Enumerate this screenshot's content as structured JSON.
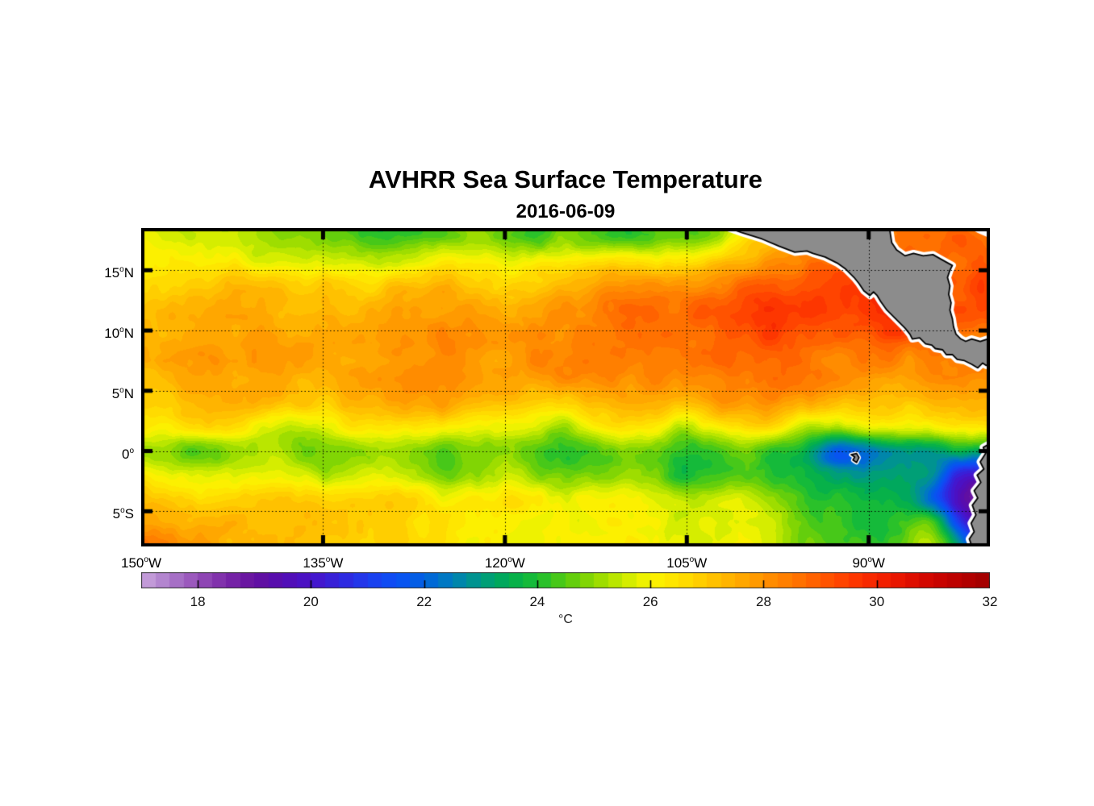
{
  "figure": {
    "title": "AVHRR Sea Surface Temperature",
    "subtitle": "2016-06-09"
  },
  "chart_data": {
    "type": "heatmap",
    "title": "AVHRR Sea Surface Temperature",
    "subtitle": "2016-06-09",
    "units_label": "°C",
    "lon_range": [
      -150,
      -80
    ],
    "lat_range": [
      -7.92,
      18.5
    ],
    "grid_on": true,
    "xticks": [
      {
        "lon": -150,
        "num": "150",
        "sup": "o",
        "dir": "W"
      },
      {
        "lon": -135,
        "num": "135",
        "sup": "o",
        "dir": "W"
      },
      {
        "lon": -120,
        "num": "120",
        "sup": "o",
        "dir": "W"
      },
      {
        "lon": -105,
        "num": "105",
        "sup": "o",
        "dir": "W"
      },
      {
        "lon": -90,
        "num": "90",
        "sup": "o",
        "dir": "W"
      }
    ],
    "yticks": [
      {
        "lat": 15,
        "num": "15",
        "sup": "o",
        "dir": "N"
      },
      {
        "lat": 10,
        "num": "10",
        "sup": "o",
        "dir": "N"
      },
      {
        "lat": 5,
        "num": "5",
        "sup": "o",
        "dir": "N"
      },
      {
        "lat": 0,
        "num": "0",
        "sup": "o",
        "dir": ""
      },
      {
        "lat": -5,
        "num": "5",
        "sup": "o",
        "dir": "S"
      }
    ],
    "colorbar": {
      "min": 17,
      "max": 32,
      "step": 0.25,
      "ticks": [
        18,
        20,
        22,
        24,
        26,
        28,
        30,
        32
      ],
      "tick_labels": [
        "18",
        "20",
        "22",
        "24",
        "26",
        "28",
        "30",
        "32"
      ],
      "unit": "°C",
      "stops": [
        [
          17.0,
          "#c9a4dc"
        ],
        [
          17.5,
          "#ab7aca"
        ],
        [
          18.0,
          "#954eb8"
        ],
        [
          18.5,
          "#7a28a8"
        ],
        [
          19.0,
          "#64109e"
        ],
        [
          19.5,
          "#540cb2"
        ],
        [
          20.0,
          "#4813c9"
        ],
        [
          20.5,
          "#3224dc"
        ],
        [
          21.0,
          "#1e3cee"
        ],
        [
          21.5,
          "#0a50f5"
        ],
        [
          22.0,
          "#0061e0"
        ],
        [
          22.5,
          "#007fb9"
        ],
        [
          23.0,
          "#009a82"
        ],
        [
          23.5,
          "#00ad50"
        ],
        [
          24.0,
          "#1cbe32"
        ],
        [
          24.5,
          "#55cb10"
        ],
        [
          25.0,
          "#90d800"
        ],
        [
          25.5,
          "#c8ea00"
        ],
        [
          26.0,
          "#fbf500"
        ],
        [
          26.5,
          "#ffe100"
        ],
        [
          27.0,
          "#ffc700"
        ],
        [
          27.5,
          "#ffad00"
        ],
        [
          28.0,
          "#ff9300"
        ],
        [
          28.5,
          "#ff7800"
        ],
        [
          29.0,
          "#ff5a00"
        ],
        [
          29.5,
          "#ff3c00"
        ],
        [
          30.0,
          "#f62300"
        ],
        [
          30.5,
          "#e41100"
        ],
        [
          31.0,
          "#cd0400"
        ],
        [
          31.5,
          "#b70000"
        ],
        [
          32.0,
          "#9f0000"
        ]
      ]
    },
    "sst_grid": {
      "lons": [
        -150,
        -147.5,
        -145,
        -142.5,
        -140,
        -137.5,
        -135,
        -132.5,
        -130,
        -127.5,
        -125,
        -122.5,
        -120,
        -117.5,
        -115,
        -112.5,
        -110,
        -107.5,
        -105,
        -102.5,
        -100,
        -97.5,
        -95,
        -92.5,
        -90,
        -87.5,
        -85,
        -82.5,
        -80
      ],
      "lats": [
        18,
        16,
        14,
        12,
        10,
        8,
        6,
        4,
        2,
        0,
        -2,
        -4,
        -6,
        -8
      ],
      "values": [
        [
          25.9,
          25.7,
          25.6,
          25.4,
          25.1,
          24.6,
          24.9,
          24.3,
          23.9,
          24.1,
          24.4,
          25.2,
          24.6,
          24.3,
          24.8,
          24.5,
          24.2,
          24.6,
          24.4,
          24.8,
          26.5,
          27.5,
          28.0,
          28.2,
          28.5,
          28.7,
          28.8,
          28.8,
          28.5
        ],
        [
          26.2,
          26.3,
          26.2,
          26.0,
          25.6,
          25.5,
          25.5,
          25.4,
          25.3,
          25.5,
          26.0,
          26.0,
          25.6,
          25.8,
          25.9,
          26.1,
          26.3,
          26.1,
          26.0,
          26.6,
          27.3,
          28.0,
          28.3,
          28.6,
          29.0,
          29.0,
          28.9,
          28.8,
          28.8
        ],
        [
          26.6,
          26.8,
          27.0,
          27.2,
          27.0,
          26.8,
          26.7,
          26.6,
          26.8,
          27.0,
          27.2,
          27.0,
          26.8,
          27.0,
          27.2,
          27.5,
          27.8,
          27.7,
          27.8,
          28.2,
          28.6,
          28.8,
          29.2,
          29.3,
          29.5,
          29.8,
          29.6,
          29.2,
          29.3
        ],
        [
          27.0,
          27.2,
          27.4,
          27.5,
          27.4,
          27.3,
          27.2,
          27.2,
          27.4,
          27.6,
          27.8,
          27.7,
          27.5,
          27.7,
          28.0,
          28.3,
          28.6,
          28.5,
          28.7,
          29.0,
          29.3,
          29.5,
          29.6,
          29.4,
          29.8,
          29.9,
          29.5,
          29.0,
          29.0
        ],
        [
          27.2,
          27.4,
          27.6,
          27.7,
          27.6,
          27.5,
          27.4,
          27.5,
          27.7,
          27.9,
          28.0,
          27.9,
          27.8,
          28.0,
          28.2,
          28.4,
          28.6,
          28.5,
          28.6,
          28.8,
          29.2,
          29.4,
          29.3,
          29.0,
          29.2,
          29.4,
          29.0,
          28.8,
          28.6
        ],
        [
          27.4,
          27.6,
          27.8,
          27.9,
          27.8,
          27.7,
          27.6,
          27.7,
          27.9,
          28.0,
          28.1,
          28.0,
          27.9,
          28.1,
          28.2,
          28.3,
          28.4,
          28.3,
          28.4,
          28.6,
          28.8,
          28.9,
          28.7,
          28.5,
          28.4,
          28.3,
          28.4,
          28.2,
          28.0
        ],
        [
          27.2,
          27.4,
          27.6,
          27.7,
          27.7,
          27.5,
          27.4,
          27.6,
          27.8,
          27.9,
          28.0,
          27.8,
          27.7,
          27.9,
          28.1,
          28.2,
          28.2,
          28.1,
          28.2,
          28.4,
          28.5,
          28.5,
          28.3,
          28.1,
          28.0,
          27.9,
          28.0,
          28.1,
          28.2
        ],
        [
          26.8,
          27.0,
          27.3,
          27.5,
          27.4,
          27.2,
          27.0,
          27.2,
          27.5,
          27.7,
          27.6,
          27.3,
          27.1,
          26.8,
          26.5,
          27.2,
          27.7,
          27.5,
          27.3,
          27.8,
          28.0,
          27.9,
          27.4,
          27.3,
          27.1,
          27.0,
          27.2,
          27.4,
          27.3
        ],
        [
          26.2,
          26.4,
          26.6,
          26.5,
          25.8,
          25.4,
          25.8,
          26.2,
          26.5,
          26.5,
          26.3,
          26.0,
          25.8,
          25.6,
          25.2,
          26.0,
          26.6,
          26.3,
          25.3,
          26.2,
          26.7,
          26.3,
          25.3,
          25.5,
          25.9,
          25.8,
          26.0,
          26.3,
          26.4
        ],
        [
          25.2,
          24.9,
          24.6,
          25.0,
          25.3,
          25.0,
          24.7,
          24.9,
          25.2,
          24.8,
          24.4,
          24.8,
          25.2,
          24.6,
          23.9,
          24.3,
          24.8,
          24.4,
          23.9,
          24.3,
          24.6,
          24.2,
          23.6,
          21.8,
          22.5,
          23.0,
          23.2,
          23.6,
          23.5
        ],
        [
          26.1,
          25.8,
          25.6,
          25.8,
          26.0,
          25.7,
          25.4,
          25.6,
          25.8,
          25.3,
          24.9,
          25.2,
          25.5,
          25.0,
          24.5,
          24.8,
          25.1,
          24.6,
          24.1,
          24.3,
          24.6,
          24.0,
          23.4,
          22.9,
          22.8,
          23.0,
          22.7,
          20.5,
          19.8
        ],
        [
          27.2,
          27.0,
          26.8,
          26.9,
          27.0,
          26.8,
          26.6,
          26.7,
          26.8,
          26.5,
          26.2,
          26.4,
          26.5,
          26.1,
          25.8,
          26.0,
          26.1,
          25.7,
          25.4,
          25.6,
          25.7,
          25.0,
          24.3,
          24.0,
          23.8,
          23.5,
          22.2,
          19.8,
          18.4
        ],
        [
          27.9,
          27.7,
          27.5,
          27.3,
          27.2,
          27.1,
          27.0,
          26.9,
          26.8,
          26.6,
          26.4,
          26.3,
          26.2,
          26.0,
          25.9,
          26.0,
          26.1,
          25.8,
          25.6,
          25.8,
          25.9,
          25.2,
          24.5,
          24.2,
          23.8,
          24.0,
          24.4,
          21.2,
          18.4
        ],
        [
          28.4,
          28.1,
          27.8,
          27.5,
          27.3,
          27.2,
          27.1,
          26.9,
          26.7,
          26.5,
          26.4,
          26.2,
          26.1,
          26.0,
          26.1,
          26.2,
          26.2,
          25.9,
          25.7,
          25.9,
          26.0,
          25.4,
          24.9,
          24.5,
          24.1,
          24.7,
          25.4,
          22.9,
          19.5
        ]
      ]
    },
    "land": {
      "fill": "#8c8c8c",
      "coast": "#000000",
      "fringe": "#ffffff",
      "central_america": [
        [
          -101.8,
          18.6
        ],
        [
          -100.4,
          18.1
        ],
        [
          -98.8,
          17.6
        ],
        [
          -97.4,
          17.0
        ],
        [
          -96.1,
          16.5
        ],
        [
          -95.1,
          16.6
        ],
        [
          -94.6,
          16.4
        ],
        [
          -93.6,
          16.1
        ],
        [
          -92.6,
          15.6
        ],
        [
          -91.9,
          15.1
        ],
        [
          -91.2,
          14.4
        ],
        [
          -90.8,
          13.9
        ],
        [
          -90.4,
          13.3
        ],
        [
          -89.9,
          12.9
        ],
        [
          -89.6,
          13.2
        ],
        [
          -89.3,
          12.9
        ],
        [
          -89.0,
          12.4
        ],
        [
          -88.5,
          11.7
        ],
        [
          -87.9,
          11.1
        ],
        [
          -87.5,
          10.7
        ],
        [
          -87.0,
          10.2
        ],
        [
          -86.6,
          9.7
        ],
        [
          -86.4,
          9.3
        ],
        [
          -85.8,
          9.4
        ],
        [
          -85.3,
          8.9
        ],
        [
          -84.8,
          8.8
        ],
        [
          -84.5,
          8.5
        ],
        [
          -83.9,
          8.4
        ],
        [
          -83.6,
          8.0
        ],
        [
          -83.1,
          8.0
        ],
        [
          -82.7,
          7.6
        ],
        [
          -82.1,
          7.5
        ],
        [
          -81.5,
          7.2
        ],
        [
          -81.0,
          6.9
        ],
        [
          -80.6,
          7.3
        ],
        [
          -80.3,
          7.1
        ],
        [
          -79.85,
          7.3
        ],
        [
          -79.85,
          9.4
        ],
        [
          -80.8,
          9.1
        ],
        [
          -81.5,
          9.3
        ],
        [
          -82.0,
          9.1
        ],
        [
          -82.4,
          9.3
        ],
        [
          -82.8,
          9.7
        ],
        [
          -83.0,
          10.3
        ],
        [
          -83.1,
          11.0
        ],
        [
          -83.3,
          11.7
        ],
        [
          -83.2,
          12.3
        ],
        [
          -83.4,
          13.0
        ],
        [
          -83.3,
          13.7
        ],
        [
          -83.5,
          14.4
        ],
        [
          -83.3,
          15.0
        ],
        [
          -83.1,
          15.4
        ],
        [
          -84.0,
          15.9
        ],
        [
          -84.7,
          16.3
        ],
        [
          -85.5,
          16.2
        ],
        [
          -86.3,
          16.4
        ],
        [
          -87.0,
          16.2
        ],
        [
          -87.7,
          16.7
        ],
        [
          -88.1,
          17.3
        ],
        [
          -88.3,
          18.6
        ]
      ],
      "south_america": [
        [
          -79.85,
          0.7
        ],
        [
          -80.55,
          0.3
        ],
        [
          -80.35,
          -0.2
        ],
        [
          -80.8,
          -0.9
        ],
        [
          -80.5,
          -1.5
        ],
        [
          -81.05,
          -2.0
        ],
        [
          -80.75,
          -2.6
        ],
        [
          -81.3,
          -3.3
        ],
        [
          -81.0,
          -3.9
        ],
        [
          -81.45,
          -4.5
        ],
        [
          -81.15,
          -5.3
        ],
        [
          -81.55,
          -6.0
        ],
        [
          -81.3,
          -6.7
        ],
        [
          -81.7,
          -7.3
        ],
        [
          -81.45,
          -8.0
        ],
        [
          -79.85,
          -8.0
        ]
      ],
      "galapagos": [
        [
          -91.45,
          -0.3
        ],
        [
          -91.0,
          -0.2
        ],
        [
          -90.8,
          -0.55
        ],
        [
          -91.0,
          -0.95
        ],
        [
          -91.3,
          -0.75
        ],
        [
          -91.15,
          -0.5
        ]
      ],
      "missing_corner": [
        [
          -81.9,
          18.6
        ],
        [
          -79.85,
          18.6
        ],
        [
          -79.85,
          17.6
        ],
        [
          -81.0,
          18.1
        ]
      ]
    }
  }
}
